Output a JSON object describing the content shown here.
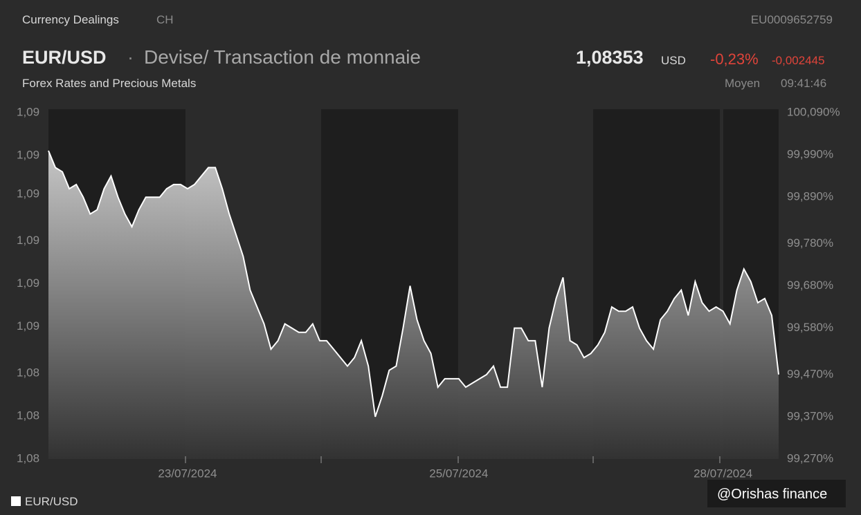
{
  "header": {
    "section": "Currency Dealings",
    "country": "CH",
    "isin": "EU0009652759",
    "symbol": "EUR/USD",
    "separator": "·",
    "description": "Devise/ Transaction de monnaie",
    "price": "1,08353",
    "currency": "USD",
    "change_pct": "-0,23%",
    "change_abs": "-0,002445",
    "category": "Forex Rates and Precious Metals",
    "price_type": "Moyen",
    "time": "09:41:46",
    "watermark": "@Orishas finance"
  },
  "chart_data": {
    "type": "area",
    "categories": [
      null,
      null,
      null,
      null,
      null,
      null,
      null,
      null,
      null,
      null,
      null,
      null,
      null,
      null,
      null,
      null,
      null,
      null,
      null,
      null,
      "23/07/2024",
      null,
      null,
      null,
      null,
      null,
      null,
      null,
      null,
      null,
      null,
      null,
      null,
      null,
      null,
      null,
      null,
      null,
      null,
      null,
      null,
      null,
      null,
      null,
      null,
      null,
      null,
      null,
      null,
      null,
      null,
      null,
      null,
      null,
      null,
      null,
      null,
      null,
      null,
      "25/07/2024",
      null,
      null,
      null,
      null,
      null,
      null,
      null,
      null,
      null,
      null,
      null,
      null,
      null,
      null,
      null,
      null,
      null,
      null,
      null,
      null,
      null,
      null,
      null,
      null,
      null,
      null,
      null,
      null,
      null,
      null,
      null,
      null,
      null,
      null,
      null,
      null,
      null,
      "28/07/2024",
      null,
      null,
      null,
      null,
      null,
      null,
      null,
      null
    ],
    "series": [
      {
        "name": "EUR/USD",
        "color": "#ffffff",
        "values": [
          100.0,
          99.96,
          99.95,
          99.91,
          99.92,
          99.89,
          99.85,
          99.86,
          99.91,
          99.94,
          99.89,
          99.85,
          99.82,
          99.86,
          99.89,
          99.89,
          99.89,
          99.91,
          99.92,
          99.92,
          99.91,
          99.92,
          99.94,
          99.96,
          99.96,
          99.91,
          99.85,
          99.8,
          99.75,
          99.67,
          99.63,
          99.59,
          99.53,
          99.55,
          99.59,
          99.58,
          99.57,
          99.57,
          99.59,
          99.55,
          99.55,
          99.53,
          99.51,
          99.49,
          99.51,
          99.55,
          99.49,
          99.37,
          99.42,
          99.48,
          99.49,
          99.58,
          99.68,
          99.6,
          99.55,
          99.52,
          99.44,
          99.46,
          99.46,
          99.46,
          99.44,
          99.45,
          99.46,
          99.47,
          99.49,
          99.44,
          99.44,
          99.58,
          99.58,
          99.55,
          99.55,
          99.44,
          99.58,
          99.65,
          99.7,
          99.55,
          99.54,
          99.51,
          99.52,
          99.54,
          99.57,
          99.63,
          99.62,
          99.62,
          99.63,
          99.58,
          99.55,
          99.53,
          99.6,
          99.62,
          99.65,
          99.67,
          99.61,
          99.69,
          99.64,
          99.62,
          99.63,
          99.62,
          99.59,
          99.67,
          99.72,
          99.69,
          99.64,
          99.65,
          99.61,
          99.47
        ]
      }
    ],
    "ylim": [
      99.27,
      100.09
    ],
    "yticks": [
      {
        "value": 99.27,
        "label": "99,270%"
      },
      {
        "value": 99.37,
        "label": "99,370%"
      },
      {
        "value": 99.47,
        "label": "99,470%"
      },
      {
        "value": 99.58,
        "label": "99,580%"
      },
      {
        "value": 99.68,
        "label": "99,680%"
      },
      {
        "value": 99.78,
        "label": "99,780%"
      },
      {
        "value": 99.89,
        "label": "99,890%"
      },
      {
        "value": 99.99,
        "label": "99,990%"
      },
      {
        "value": 100.09,
        "label": "100,090%"
      }
    ],
    "y2lim": [
      1.0818,
      1.0907
    ],
    "y2ticks": [
      {
        "value": 1.0818,
        "label": "1,08"
      },
      {
        "value": 1.0829,
        "label": "1,08"
      },
      {
        "value": 1.084,
        "label": "1,08"
      },
      {
        "value": 1.0852,
        "label": "1,09"
      },
      {
        "value": 1.0863,
        "label": "1,09"
      },
      {
        "value": 1.0874,
        "label": "1,09"
      },
      {
        "value": 1.0886,
        "label": "1,09"
      },
      {
        "value": 1.0896,
        "label": "1,09"
      },
      {
        "value": 1.0907,
        "label": "1,09"
      }
    ],
    "grid": false,
    "legend": "bottom-left"
  }
}
